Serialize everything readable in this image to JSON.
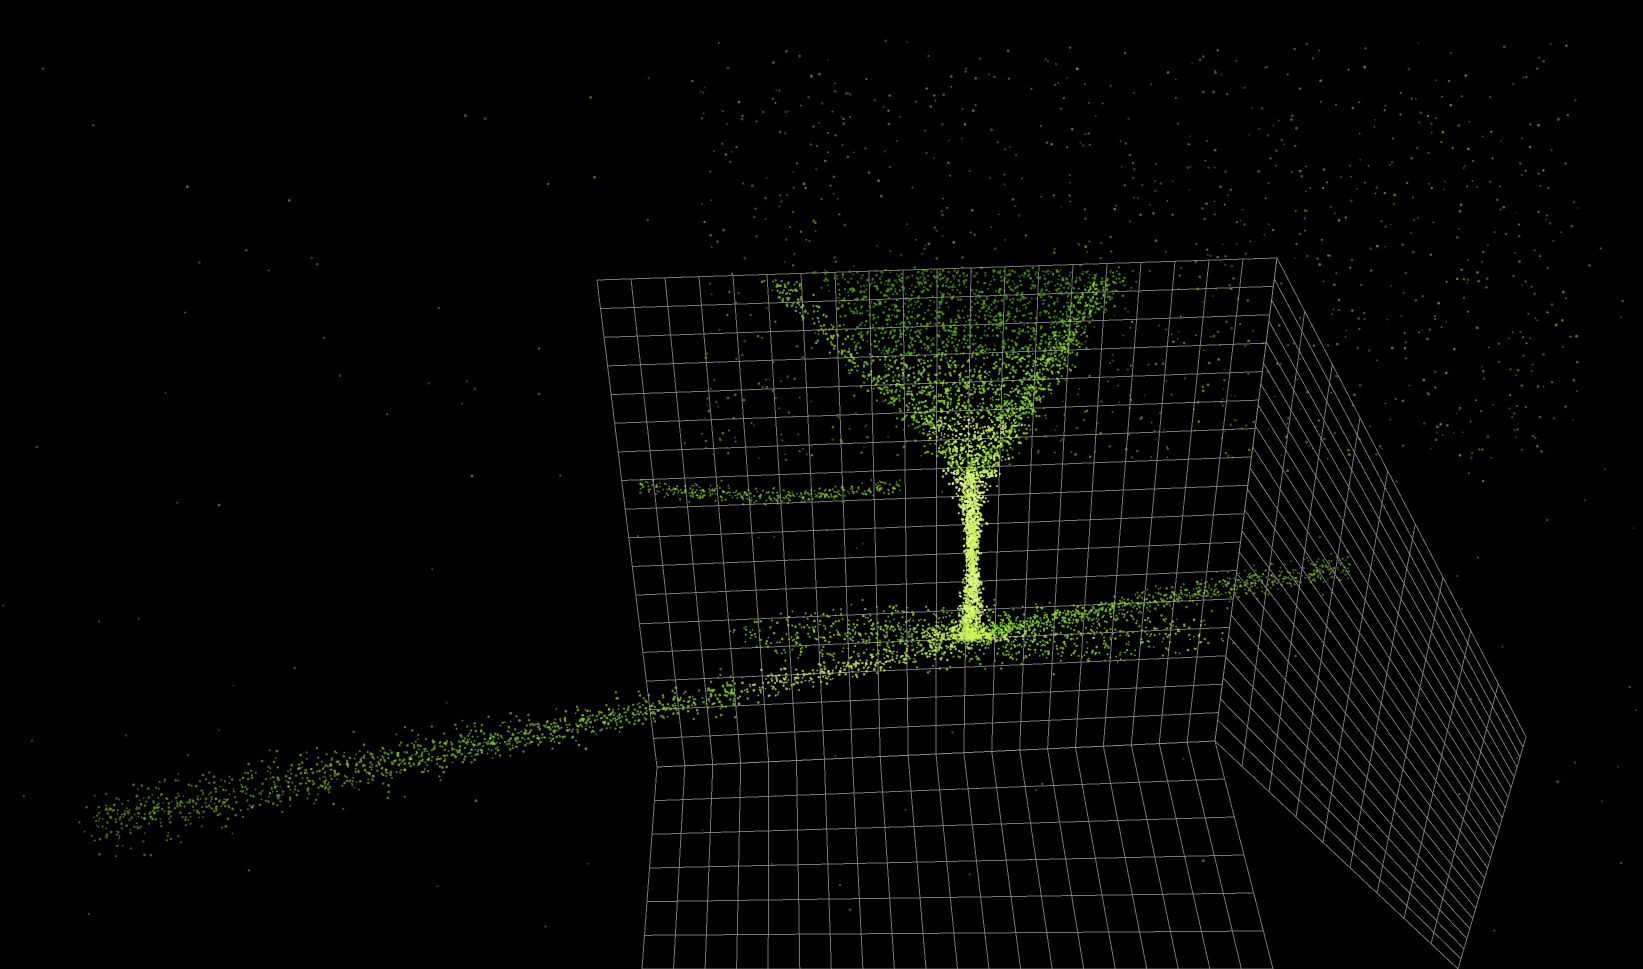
{
  "scene": {
    "background_color": "#000000",
    "grid_color": "#8a8a8a",
    "particle_colors": {
      "sparse": "#5ec21a",
      "mid": "#8ee02e",
      "dense": "#c8f55a",
      "core": "#eaff9a"
    },
    "grid": {
      "back_wall_cells": {
        "columns": 20,
        "rows": 17
      },
      "floor_cells": {
        "columns": 20,
        "rows": 6
      },
      "side_wall_cells": {
        "columns": 9,
        "rows": 23
      }
    },
    "particle_system": {
      "shape": "vortex funnel with trailing stream",
      "approximate_particle_count": 9000
    }
  }
}
